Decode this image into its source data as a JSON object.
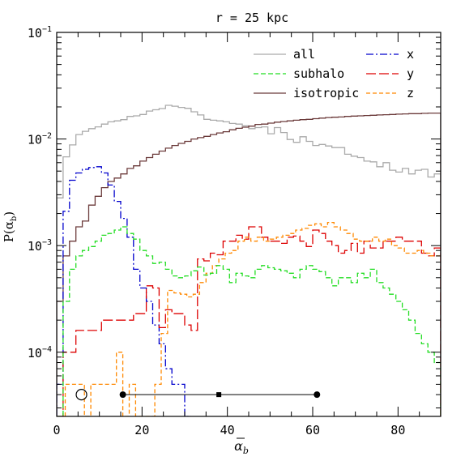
{
  "chart_data": {
    "type": "line",
    "title": "r = 25 kpc",
    "xlabel_main": "α",
    "xlabel_sub": "b",
    "ylabel_main": "P(α",
    "ylabel_sub": "b",
    "ylabel_close": ")",
    "xlim": [
      0,
      90
    ],
    "ylim": [
      2.5e-05,
      0.1
    ],
    "yscale": "log",
    "x_ticks": [
      {
        "value": 0,
        "label": "0"
      },
      {
        "value": 20,
        "label": "20"
      },
      {
        "value": 40,
        "label": "40"
      },
      {
        "value": 60,
        "label": "60"
      },
      {
        "value": 80,
        "label": "80"
      }
    ],
    "y_ticks": [
      {
        "value": 0.0001,
        "label": "10",
        "exp": "−4"
      },
      {
        "value": 0.001,
        "label": "10",
        "exp": "−3"
      },
      {
        "value": 0.01,
        "label": "10",
        "exp": "−2"
      },
      {
        "value": 0.1,
        "label": "10",
        "exp": "−1"
      }
    ],
    "bin_width": 1.5,
    "legend": [
      {
        "name": "all",
        "color": "#aaaaaa",
        "dash": ""
      },
      {
        "name": "subhalo",
        "color": "#22dd22",
        "dash": "6,3"
      },
      {
        "name": "isotropic",
        "color": "#6b3a3a",
        "dash": ""
      },
      {
        "name": "x",
        "color": "#0000cc",
        "dash": "9,3,2,3"
      },
      {
        "name": "y",
        "color": "#dd0000",
        "dash": "12,4"
      },
      {
        "name": "z",
        "color": "#ff8800",
        "dash": "5,3"
      }
    ],
    "series": [
      {
        "name": "all",
        "color": "#aaaaaa",
        "dash": "",
        "floor": 2.5e-05,
        "values": [
          0.0028,
          0.0068,
          0.0088,
          0.011,
          0.0118,
          0.0125,
          0.013,
          0.0138,
          0.0145,
          0.0148,
          0.0152,
          0.0163,
          0.0165,
          0.017,
          0.0183,
          0.0188,
          0.0193,
          0.0207,
          0.0203,
          0.0198,
          0.0194,
          0.018,
          0.0168,
          0.0153,
          0.015,
          0.0148,
          0.0145,
          0.014,
          0.0138,
          0.0133,
          0.0125,
          0.0128,
          0.013,
          0.0112,
          0.0128,
          0.0115,
          0.0099,
          0.0093,
          0.0105,
          0.0095,
          0.0087,
          0.0089,
          0.0086,
          0.0083,
          0.0083,
          0.0072,
          0.0069,
          0.0067,
          0.0062,
          0.0061,
          0.0055,
          0.006,
          0.0051,
          0.0049,
          0.0053,
          0.0047,
          0.0051,
          0.0052,
          0.0044,
          0.0047
        ]
      },
      {
        "name": "isotropic",
        "color": "#6b3a3a",
        "dash": "",
        "floor": 2.5e-05,
        "values": [
          0.0003,
          0.0008,
          0.0011,
          0.0015,
          0.0017,
          0.0024,
          0.0029,
          0.0035,
          0.004,
          0.0043,
          0.0047,
          0.0053,
          0.0056,
          0.0062,
          0.0067,
          0.0072,
          0.0077,
          0.0082,
          0.0087,
          0.0091,
          0.0095,
          0.01,
          0.0103,
          0.0106,
          0.011,
          0.0114,
          0.0117,
          0.0122,
          0.0126,
          0.0129,
          0.0132,
          0.0137,
          0.0138,
          0.0141,
          0.0144,
          0.0146,
          0.0148,
          0.015,
          0.0152,
          0.0153,
          0.0155,
          0.0157,
          0.0159,
          0.016,
          0.0161,
          0.0163,
          0.0164,
          0.0165,
          0.0166,
          0.0167,
          0.0168,
          0.0169,
          0.017,
          0.0171,
          0.0172,
          0.0173,
          0.0173,
          0.0174,
          0.0175,
          0.0175
        ]
      },
      {
        "name": "x",
        "color": "#0000cc",
        "dash": "9,3,2,3",
        "floor": 2.5e-05,
        "values": [
          5e-05,
          0.0021,
          0.0041,
          0.0048,
          0.0052,
          0.0054,
          0.0055,
          0.0048,
          0.0037,
          0.0026,
          0.0018,
          0.0012,
          0.0006,
          0.0004,
          0.0003,
          0.00018,
          0.00012,
          7e-05,
          5e-05,
          5e-05,
          2.5e-05
        ]
      },
      {
        "name": "y",
        "color": "#dd0000",
        "dash": "12,4",
        "floor": 2.5e-05,
        "values": [
          2.5e-05,
          0.0001,
          0.0001,
          0.00016,
          0.00016,
          0.00016,
          0.00016,
          0.0002,
          0.0002,
          0.0002,
          0.0002,
          0.0002,
          0.00023,
          0.00023,
          0.00042,
          0.0004,
          0.00017,
          0.00025,
          0.00023,
          0.00023,
          0.00018,
          0.00016,
          0.00075,
          0.00072,
          0.00085,
          0.00082,
          0.0011,
          0.0011,
          0.00125,
          0.00115,
          0.0015,
          0.0015,
          0.0012,
          0.0011,
          0.0011,
          0.00105,
          0.0012,
          0.00123,
          0.0011,
          0.00098,
          0.0014,
          0.0013,
          0.0011,
          0.001,
          0.00085,
          0.0009,
          0.00105,
          0.00085,
          0.0011,
          0.00095,
          0.00095,
          0.0011,
          0.0011,
          0.0012,
          0.0011,
          0.0011,
          0.0011,
          0.00085,
          0.0008,
          0.00095
        ]
      },
      {
        "name": "z",
        "color": "#ff8800",
        "dash": "5,3",
        "floor": 2.5e-05,
        "values": [
          5e-05,
          5e-05,
          5e-05,
          2.5e-05,
          5e-05,
          5e-05,
          5e-05,
          5e-05,
          0.0001,
          2.5e-05,
          5e-05,
          2.5e-05,
          2.5e-05,
          2.5e-05,
          5e-05,
          0.00015,
          0.00038,
          0.00036,
          0.00035,
          0.00033,
          0.00035,
          0.00045,
          0.00055,
          0.00065,
          0.00075,
          0.00085,
          0.0009,
          0.0011,
          0.0012,
          0.0011,
          0.0012,
          0.0011,
          0.00115,
          0.0012,
          0.00125,
          0.0013,
          0.0014,
          0.00145,
          0.00155,
          0.0016,
          0.0015,
          0.00165,
          0.0015,
          0.0014,
          0.0013,
          0.00115,
          0.0011,
          0.0011,
          0.0012,
          0.0011,
          0.00115,
          0.001,
          0.00095,
          0.00085,
          0.00085,
          0.0009,
          0.00085,
          0.0008,
          0.0008,
          0.0007
        ],
        "start": 2,
        "bin_width": 1.5
      },
      {
        "name": "subhalo",
        "color": "#22dd22",
        "dash": "6,3",
        "floor": 2.5e-05,
        "values": [
          2.5e-05,
          0.0003,
          0.0006,
          0.0008,
          0.0009,
          0.00098,
          0.0011,
          0.00125,
          0.0013,
          0.0014,
          0.0015,
          0.0013,
          0.00115,
          0.0009,
          0.0008,
          0.00068,
          0.0007,
          0.0006,
          0.00052,
          0.0005,
          0.00052,
          0.00058,
          0.00063,
          0.00053,
          0.00055,
          0.00065,
          0.0006,
          0.00045,
          0.00055,
          0.00052,
          0.0005,
          0.0006,
          0.00065,
          0.00062,
          0.0006,
          0.00058,
          0.00055,
          0.0005,
          0.0006,
          0.00065,
          0.0006,
          0.00057,
          0.0005,
          0.00042,
          0.0005,
          0.0005,
          0.00045,
          0.00055,
          0.0005,
          0.0006,
          0.00045,
          0.0004,
          0.00035,
          0.0003,
          0.00025,
          0.0002,
          0.00015,
          0.00012,
          0.0001,
          8e-05
        ]
      }
    ],
    "markers": {
      "open_circle": {
        "x": 5.8,
        "y": 4e-05
      },
      "errorbar": {
        "y": 4e-05,
        "left": 15.5,
        "center": 38,
        "right": 61
      }
    }
  }
}
